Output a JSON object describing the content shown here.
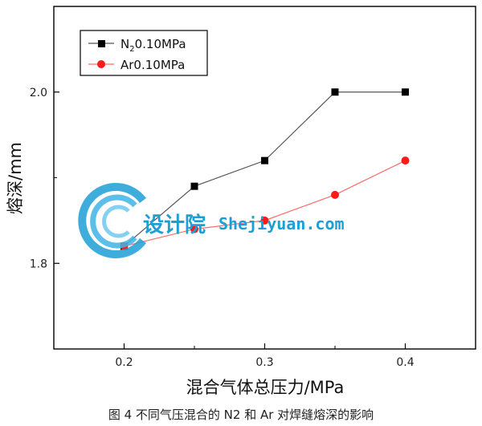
{
  "chart_data": {
    "type": "line",
    "xlabel": "混合气体总压力/MPa",
    "ylabel": "熔深/mm",
    "xlim": [
      0.15,
      0.45
    ],
    "ylim": [
      1.7,
      2.1
    ],
    "x_ticks": [
      "0.2",
      "0.3",
      "0.4"
    ],
    "y_ticks": [
      "1.8",
      "2.0"
    ],
    "x_tick_values": [
      0.2,
      0.3,
      0.4
    ],
    "y_tick_values": [
      1.8,
      2.0
    ],
    "legend_position": "top-left",
    "series": [
      {
        "name": "N20.10MPa",
        "label_main": "N",
        "label_sub": "2",
        "label_rest": "0.10MPa",
        "color": "#000000",
        "line_color": "#555555",
        "marker": "square",
        "x": [
          0.2,
          0.25,
          0.3,
          0.35,
          0.4
        ],
        "y": [
          1.82,
          1.89,
          1.92,
          2.0,
          2.0
        ]
      },
      {
        "name": "Ar0.10MPa",
        "color": "#ff1a1a",
        "line_color": "#ff6b6b",
        "marker": "circle",
        "x": [
          0.2,
          0.25,
          0.3,
          0.35,
          0.4
        ],
        "y": [
          1.82,
          1.84,
          1.85,
          1.88,
          1.92
        ]
      }
    ]
  },
  "watermark": {
    "cn": "设计院",
    "en": "Shejiyuan.com"
  },
  "caption": "图 4 不同气压混合的 N2 和 Ar 对焊缝熔深的影响"
}
